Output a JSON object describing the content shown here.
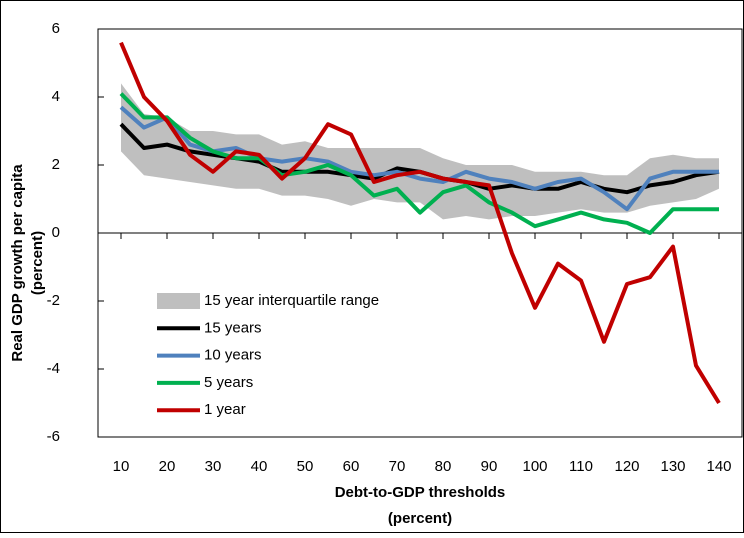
{
  "chart_data": {
    "type": "line",
    "ylabel": [
      "Real GDP growth per capita",
      "(percent)"
    ],
    "xlabel": [
      "Debt-to-GDP thresholds",
      "(percent)"
    ],
    "x": [
      10,
      15,
      20,
      25,
      30,
      35,
      40,
      45,
      50,
      55,
      60,
      65,
      70,
      75,
      80,
      85,
      90,
      95,
      100,
      105,
      110,
      115,
      120,
      125,
      130,
      135,
      140
    ],
    "xlim": [
      5,
      145
    ],
    "xticks": [
      10,
      20,
      30,
      40,
      50,
      60,
      70,
      80,
      90,
      100,
      110,
      120,
      130,
      140
    ],
    "ylim": [
      -6,
      6
    ],
    "yticks": [
      -6,
      -4,
      -2,
      0,
      2,
      4,
      6
    ],
    "legend": "left",
    "series": [
      {
        "name": "15 year interquartile range",
        "color": "#bfbfbf",
        "kind": "band",
        "low": [
          2.4,
          1.7,
          1.6,
          1.5,
          1.4,
          1.3,
          1.3,
          1.1,
          1.1,
          1.0,
          0.8,
          1.0,
          0.9,
          0.9,
          0.4,
          0.5,
          0.4,
          0.5,
          0.5,
          0.6,
          0.7,
          0.6,
          0.6,
          0.8,
          0.9,
          1.0,
          1.3
        ],
        "high": [
          4.4,
          3.5,
          3.4,
          3.0,
          3.0,
          2.9,
          2.9,
          2.6,
          2.7,
          2.5,
          2.5,
          2.5,
          2.5,
          2.5,
          2.2,
          2.0,
          2.0,
          2.0,
          1.8,
          1.8,
          1.8,
          1.7,
          1.7,
          2.2,
          2.3,
          2.2,
          2.2
        ]
      },
      {
        "name": "15 years",
        "color": "#000000",
        "values": [
          3.2,
          2.5,
          2.6,
          2.4,
          2.3,
          2.2,
          2.1,
          1.8,
          1.8,
          1.8,
          1.7,
          1.6,
          1.9,
          1.8,
          1.6,
          1.5,
          1.3,
          1.4,
          1.3,
          1.3,
          1.5,
          1.3,
          1.2,
          1.4,
          1.5,
          1.7,
          1.8
        ]
      },
      {
        "name": "10 years",
        "color": "#4f81bd",
        "values": [
          3.7,
          3.1,
          3.4,
          2.6,
          2.4,
          2.5,
          2.2,
          2.1,
          2.2,
          2.1,
          1.8,
          1.7,
          1.8,
          1.6,
          1.5,
          1.8,
          1.6,
          1.5,
          1.3,
          1.5,
          1.6,
          1.2,
          0.7,
          1.6,
          1.8,
          1.8,
          1.8
        ]
      },
      {
        "name": "5 years",
        "color": "#00b050",
        "values": [
          4.1,
          3.4,
          3.4,
          2.8,
          2.4,
          2.2,
          2.2,
          1.7,
          1.8,
          2.0,
          1.7,
          1.1,
          1.3,
          0.6,
          1.2,
          1.4,
          0.9,
          0.6,
          0.2,
          0.4,
          0.6,
          0.4,
          0.3,
          0.0,
          0.7,
          0.7,
          0.7
        ]
      },
      {
        "name": "1 year",
        "color": "#c00000",
        "values": [
          5.6,
          4.0,
          3.3,
          2.3,
          1.8,
          2.4,
          2.3,
          1.6,
          2.2,
          3.2,
          2.9,
          1.5,
          1.7,
          1.8,
          1.6,
          1.5,
          1.4,
          -0.6,
          -2.2,
          -0.9,
          -1.4,
          -3.2,
          -1.5,
          -1.3,
          -0.4,
          -3.9,
          -5.0
        ]
      }
    ]
  }
}
